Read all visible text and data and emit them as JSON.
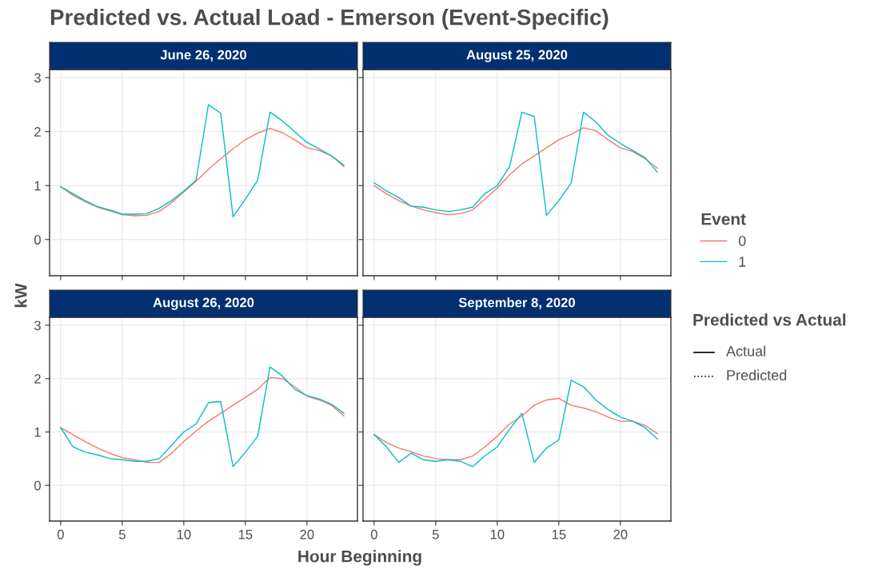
{
  "chart_data": [
    {
      "type": "line",
      "title": "June 26, 2020",
      "xlabel": "Hour Beginning",
      "ylabel": "kW",
      "legend_title": "Event",
      "legend": "right",
      "tick_labels": "y",
      "grid": true,
      "line_style": "solid",
      "annotations": [
        "Predicted vs. Actual Load - Emerson (Event-Specific)",
        "Predicted vs Actual",
        "Actual",
        "Predicted"
      ],
      "x": [
        0,
        1,
        2,
        3,
        4,
        5,
        6,
        7,
        8,
        9,
        10,
        11,
        12,
        13,
        14,
        15,
        16,
        17,
        18,
        19,
        20,
        21,
        22,
        23
      ],
      "xlim": [
        -0.9,
        24.1
      ],
      "xticks": [
        0,
        5,
        10,
        15,
        20
      ],
      "ylim": [
        -0.67,
        3.15
      ],
      "yticks": [
        0,
        1,
        2,
        3
      ],
      "series": [
        {
          "name": "0",
          "color": "#f8766d",
          "values": [
            0.98,
            0.82,
            0.7,
            0.6,
            0.53,
            0.46,
            0.44,
            0.45,
            0.52,
            0.68,
            0.88,
            1.08,
            1.3,
            1.5,
            1.68,
            1.85,
            1.97,
            2.06,
            1.98,
            1.85,
            1.7,
            1.65,
            1.55,
            1.35
          ]
        },
        {
          "name": "1",
          "color": "#00bfc4",
          "values": [
            0.98,
            0.85,
            0.72,
            0.61,
            0.55,
            0.47,
            0.47,
            0.48,
            0.58,
            0.72,
            0.9,
            1.1,
            2.5,
            2.34,
            0.42,
            0.75,
            1.1,
            2.36,
            2.2,
            2.0,
            1.8,
            1.68,
            1.55,
            1.38
          ]
        }
      ]
    },
    {
      "type": "line",
      "title": "August 25, 2020",
      "tick_labels": false,
      "grid": true,
      "line_style": "solid",
      "x": [
        0,
        1,
        2,
        3,
        4,
        5,
        6,
        7,
        8,
        9,
        10,
        11,
        12,
        13,
        14,
        15,
        16,
        17,
        18,
        19,
        20,
        21,
        22,
        23
      ],
      "xlim": [
        -0.9,
        24.1
      ],
      "xticks": [
        0,
        5,
        10,
        15,
        20
      ],
      "ylim": [
        -0.67,
        3.15
      ],
      "yticks": [
        0,
        1,
        2,
        3
      ],
      "series": [
        {
          "color": "#f8766d",
          "values": [
            1.0,
            0.85,
            0.72,
            0.62,
            0.55,
            0.5,
            0.46,
            0.48,
            0.55,
            0.75,
            0.95,
            1.2,
            1.4,
            1.55,
            1.7,
            1.85,
            1.95,
            2.07,
            2.02,
            1.85,
            1.7,
            1.63,
            1.5,
            1.32
          ]
        },
        {
          "color": "#00bfc4",
          "values": [
            1.05,
            0.9,
            0.78,
            0.62,
            0.6,
            0.55,
            0.52,
            0.55,
            0.6,
            0.85,
            1.0,
            1.35,
            2.36,
            2.28,
            0.45,
            0.72,
            1.05,
            2.36,
            2.18,
            1.93,
            1.78,
            1.65,
            1.52,
            1.25
          ]
        }
      ]
    },
    {
      "type": "line",
      "title": "August 26, 2020",
      "grid": true,
      "line_style": "solid",
      "x": [
        0,
        1,
        2,
        3,
        4,
        5,
        6,
        7,
        8,
        9,
        10,
        11,
        12,
        13,
        14,
        15,
        16,
        17,
        18,
        19,
        20,
        21,
        22,
        23
      ],
      "xlim": [
        -0.9,
        24.1
      ],
      "xticks": [
        0,
        5,
        10,
        15,
        20
      ],
      "ylim": [
        -0.67,
        3.15
      ],
      "yticks": [
        0,
        1,
        2,
        3
      ],
      "series": [
        {
          "color": "#f8766d",
          "values": [
            1.08,
            0.95,
            0.82,
            0.7,
            0.6,
            0.52,
            0.48,
            0.43,
            0.43,
            0.6,
            0.82,
            1.02,
            1.2,
            1.35,
            1.5,
            1.65,
            1.8,
            2.02,
            2.0,
            1.85,
            1.67,
            1.6,
            1.5,
            1.3
          ]
        },
        {
          "color": "#00bfc4",
          "values": [
            1.08,
            0.72,
            0.62,
            0.57,
            0.5,
            0.48,
            0.45,
            0.45,
            0.5,
            0.75,
            1.0,
            1.15,
            1.55,
            1.57,
            0.35,
            0.62,
            0.92,
            2.22,
            2.05,
            1.8,
            1.68,
            1.62,
            1.52,
            1.35
          ]
        }
      ]
    },
    {
      "type": "line",
      "title": "September 8, 2020",
      "tick_labels": "x",
      "grid": true,
      "line_style": "solid",
      "x": [
        0,
        1,
        2,
        3,
        4,
        5,
        6,
        7,
        8,
        9,
        10,
        11,
        12,
        13,
        14,
        15,
        16,
        17,
        18,
        19,
        20,
        21,
        22,
        23
      ],
      "xlim": [
        -0.9,
        24.1
      ],
      "xticks": [
        0,
        5,
        10,
        15,
        20
      ],
      "ylim": [
        -0.67,
        3.15
      ],
      "yticks": [
        0,
        1,
        2,
        3
      ],
      "series": [
        {
          "color": "#f8766d",
          "values": [
            0.95,
            0.8,
            0.7,
            0.63,
            0.55,
            0.5,
            0.48,
            0.48,
            0.55,
            0.72,
            0.92,
            1.15,
            1.3,
            1.5,
            1.6,
            1.63,
            1.5,
            1.45,
            1.38,
            1.28,
            1.2,
            1.2,
            1.12,
            0.97
          ]
        },
        {
          "color": "#00bfc4",
          "values": [
            0.95,
            0.72,
            0.43,
            0.6,
            0.48,
            0.45,
            0.48,
            0.45,
            0.35,
            0.55,
            0.72,
            1.05,
            1.35,
            0.43,
            0.7,
            0.85,
            1.97,
            1.85,
            1.6,
            1.42,
            1.28,
            1.2,
            1.08,
            0.87
          ]
        }
      ]
    }
  ]
}
